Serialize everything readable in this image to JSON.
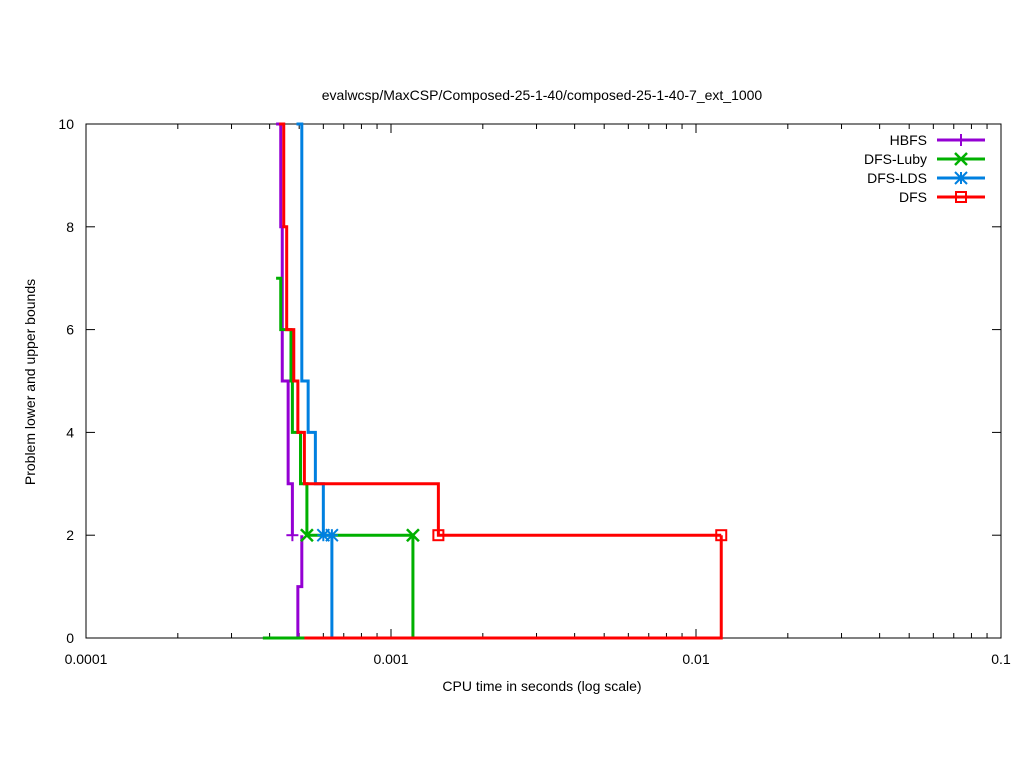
{
  "chart_data": {
    "type": "line",
    "title": "evalwcsp/MaxCSP/Composed-25-1-40/composed-25-1-40-7_ext_1000",
    "xlabel": "CPU time in seconds (log scale)",
    "ylabel": "Problem lower and upper bounds",
    "x_scale": "log",
    "xlim": [
      0.0001,
      0.1
    ],
    "ylim": [
      0,
      10
    ],
    "x_ticks": [
      {
        "value": 0.0001,
        "label": "0.0001"
      },
      {
        "value": 0.001,
        "label": "0.001"
      },
      {
        "value": 0.01,
        "label": "0.01"
      },
      {
        "value": 0.1,
        "label": "0.1"
      }
    ],
    "y_ticks": [
      {
        "value": 0,
        "label": "0"
      },
      {
        "value": 2,
        "label": "2"
      },
      {
        "value": 4,
        "label": "4"
      },
      {
        "value": 6,
        "label": "6"
      },
      {
        "value": 8,
        "label": "8"
      },
      {
        "value": 10,
        "label": "10"
      }
    ],
    "grid": false,
    "legend_position": "top-right",
    "series": [
      {
        "name": "HBFS",
        "color": "#9400d3",
        "marker": "plus",
        "upper": [
          [
            0.00042,
            10
          ],
          [
            0.000435,
            8
          ],
          [
            0.00044,
            5
          ],
          [
            0.00046,
            3
          ],
          [
            0.000475,
            2
          ]
        ],
        "lower": [
          [
            0.000475,
            0
          ],
          [
            0.000495,
            1
          ],
          [
            0.00051,
            2
          ]
        ],
        "markers": [
          [
            0.000475,
            2
          ]
        ]
      },
      {
        "name": "DFS-Luby",
        "color": "#00b000",
        "marker": "cross",
        "upper": [
          [
            0.00042,
            7
          ],
          [
            0.000435,
            6
          ],
          [
            0.00047,
            5
          ],
          [
            0.000475,
            4
          ],
          [
            0.000505,
            3
          ],
          [
            0.00053,
            2
          ],
          [
            0.00118,
            2
          ]
        ],
        "lower": [
          [
            0.00038,
            0
          ],
          [
            0.00118,
            0
          ],
          [
            0.00118,
            2
          ]
        ],
        "markers": [
          [
            0.00053,
            2
          ],
          [
            0.00118,
            2
          ]
        ]
      },
      {
        "name": "DFS-LDS",
        "color": "#0080e0",
        "marker": "star",
        "upper": [
          [
            0.00049,
            10
          ],
          [
            0.00051,
            5
          ],
          [
            0.000535,
            4
          ],
          [
            0.000565,
            3
          ],
          [
            0.0006,
            2
          ],
          [
            0.00064,
            2
          ]
        ],
        "lower": [
          [
            0.00064,
            0
          ],
          [
            0.00064,
            2
          ]
        ],
        "markers": [
          [
            0.0006,
            2
          ],
          [
            0.00064,
            2
          ]
        ]
      },
      {
        "name": "DFS",
        "color": "#ff0000",
        "marker": "square",
        "upper": [
          [
            0.00043,
            10
          ],
          [
            0.000445,
            8
          ],
          [
            0.000455,
            6
          ],
          [
            0.00048,
            5
          ],
          [
            0.000495,
            4
          ],
          [
            0.00052,
            3
          ],
          [
            0.00143,
            3
          ],
          [
            0.00143,
            2
          ],
          [
            0.0121,
            2
          ]
        ],
        "lower": [
          [
            0.00052,
            0
          ],
          [
            0.0121,
            0
          ],
          [
            0.0121,
            2
          ]
        ],
        "markers": [
          [
            0.00143,
            2
          ],
          [
            0.0121,
            2
          ]
        ]
      }
    ]
  }
}
